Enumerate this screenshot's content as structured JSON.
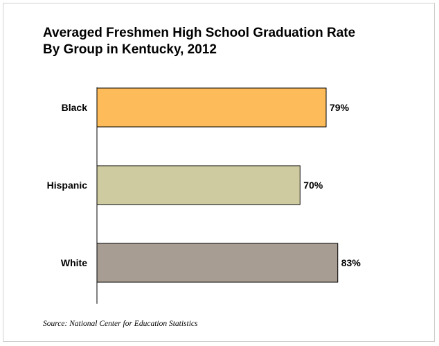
{
  "chart_data": {
    "type": "bar",
    "orientation": "horizontal",
    "title_lines": [
      "Averaged Freshmen High School Graduation Rate",
      "By Group in Kentucky, 2012"
    ],
    "categories": [
      "Black",
      "Hispanic",
      "White"
    ],
    "values": [
      79,
      70,
      83
    ],
    "value_labels": [
      "79%",
      "70%",
      "83%"
    ],
    "colors": [
      "#FDBB5A",
      "#CFCBA0",
      "#A89D92"
    ],
    "xlim": [
      0,
      100
    ],
    "grid": false,
    "legend": "none"
  },
  "source": "Source: National Center for Education Statistics"
}
